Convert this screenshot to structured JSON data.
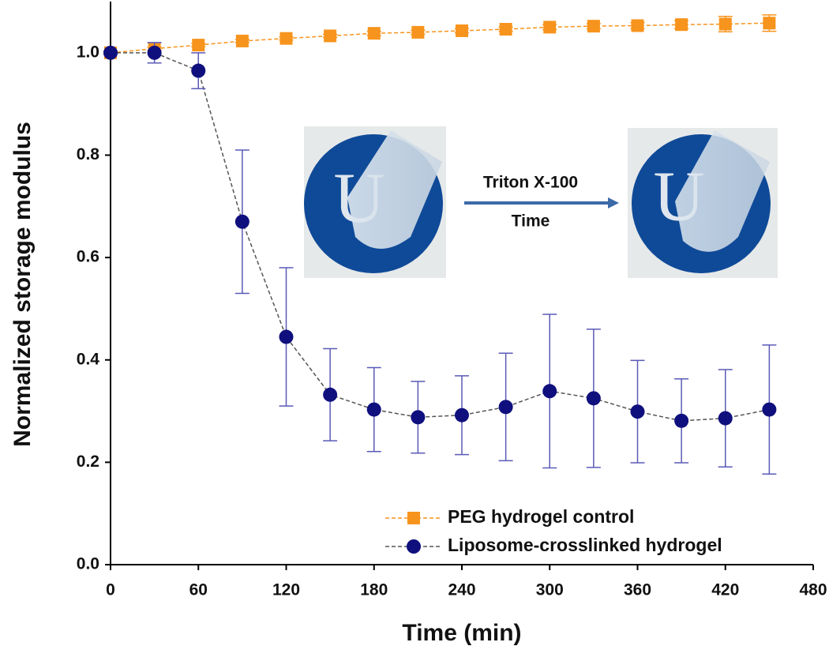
{
  "chart_data": {
    "type": "line",
    "xlabel": "Time (min)",
    "ylabel": "Normalized storage modulus",
    "x": [
      0,
      30,
      60,
      90,
      120,
      150,
      180,
      210,
      240,
      270,
      300,
      330,
      360,
      390,
      420,
      450
    ],
    "series": [
      {
        "name": "PEG hydrogel control",
        "color": "#f7941d",
        "marker": "square",
        "values": [
          1.0,
          1.008,
          1.015,
          1.023,
          1.028,
          1.033,
          1.038,
          1.04,
          1.043,
          1.046,
          1.05,
          1.052,
          1.053,
          1.055,
          1.056,
          1.058
        ],
        "errors": [
          0.003,
          0.003,
          0.003,
          0.003,
          0.003,
          0.003,
          0.004,
          0.004,
          0.004,
          0.004,
          0.005,
          0.005,
          0.006,
          0.008,
          0.015,
          0.016
        ]
      },
      {
        "name": "Liposome-crosslinked hydrogel",
        "color": "#0f0f7d",
        "marker": "circle",
        "values": [
          1.0,
          1.0,
          0.965,
          0.67,
          0.445,
          0.332,
          0.303,
          0.288,
          0.292,
          0.308,
          0.339,
          0.325,
          0.299,
          0.281,
          0.286,
          0.303
        ],
        "errors": [
          0.003,
          0.02,
          0.035,
          0.14,
          0.135,
          0.09,
          0.082,
          0.07,
          0.077,
          0.105,
          0.15,
          0.135,
          0.1,
          0.082,
          0.095,
          0.126
        ]
      }
    ],
    "xlim": [
      0,
      480
    ],
    "xticks": [
      0,
      60,
      120,
      180,
      240,
      300,
      360,
      420,
      480
    ],
    "ylim": [
      0,
      1.1
    ],
    "yticks": [
      {
        "value": 0,
        "label": "0.0"
      },
      0.2,
      0.4,
      0.6,
      0.8,
      {
        "value": 1,
        "label": "1.0"
      }
    ],
    "annotations": [
      "Triton X-100",
      "Time"
    ],
    "legend": "lower right",
    "grid": false
  }
}
